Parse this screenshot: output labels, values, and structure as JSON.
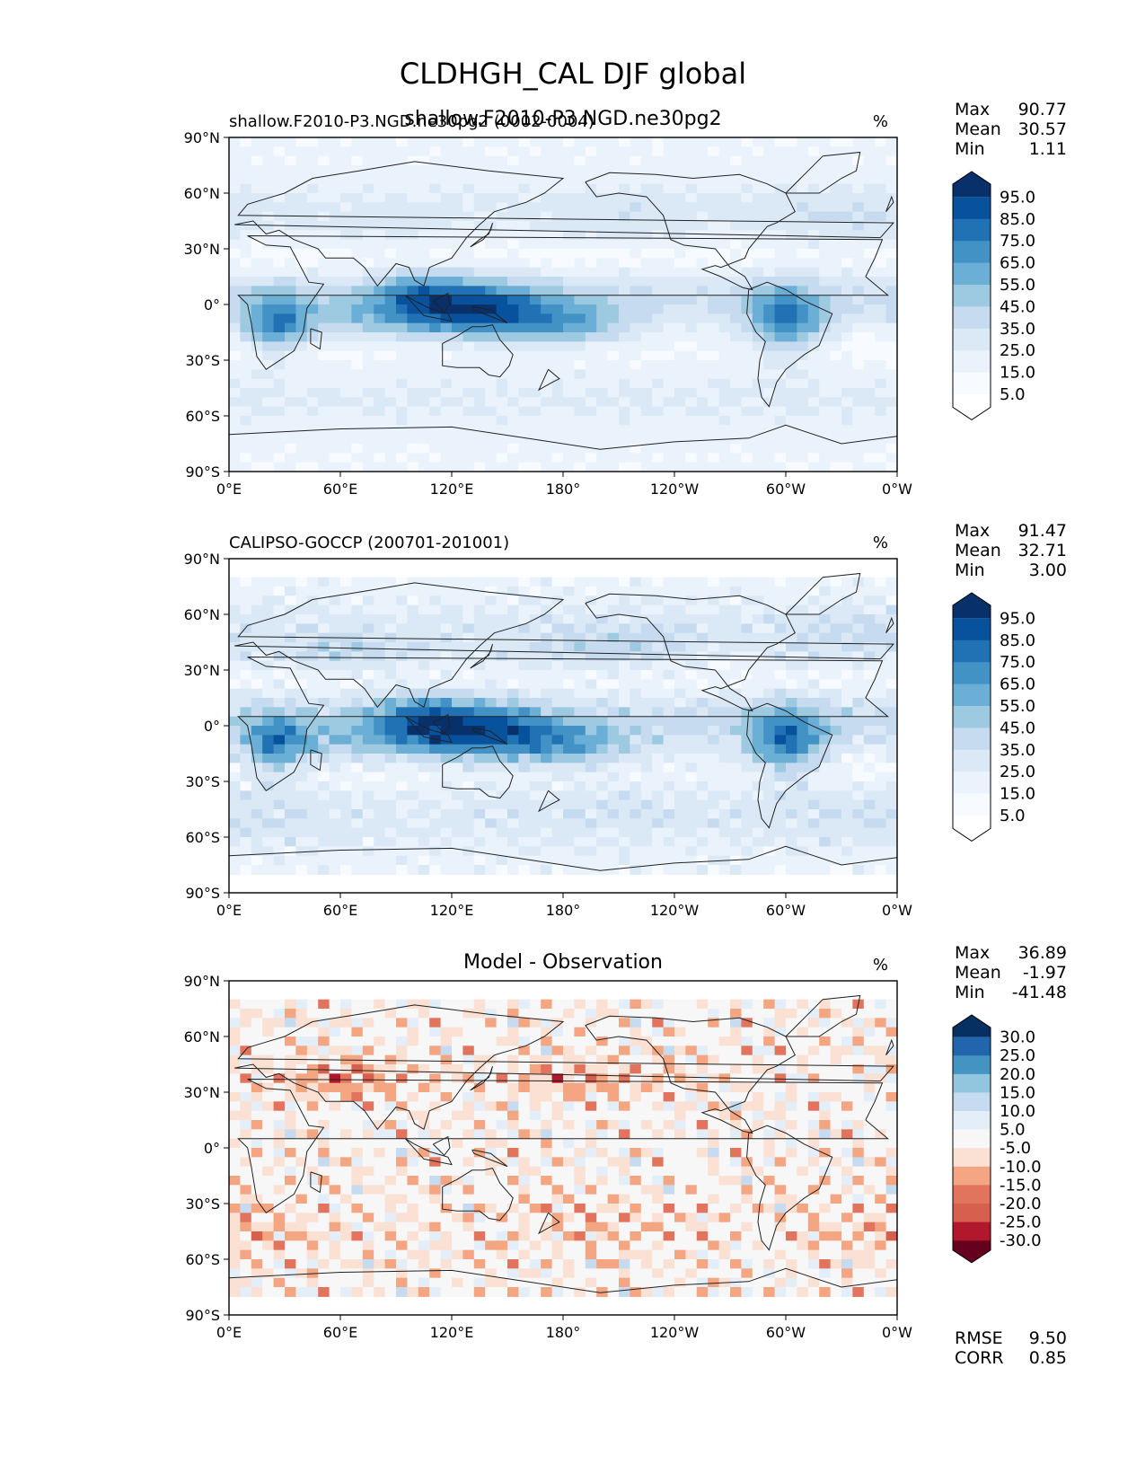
{
  "title": "CLDHGH_CAL DJF global",
  "chart_data": [
    {
      "type": "heatmap",
      "title": "shallow.F2010-P3.NGD.ne30pg2",
      "subtitle_left": "shallow.F2010-P3.NGD.ne30pg2 (0002-0004)",
      "units": "%",
      "stats": [
        {
          "label": "Max",
          "value": "90.77"
        },
        {
          "label": "Mean",
          "value": "30.57"
        },
        {
          "label": "Min",
          "value": "1.11"
        }
      ],
      "xlim": [
        0,
        360
      ],
      "ylim": [
        -90,
        90
      ],
      "xticks": [
        "0°E",
        "60°E",
        "120°E",
        "180°",
        "120°W",
        "60°W",
        "0°W"
      ],
      "yticks": [
        "90°N",
        "60°N",
        "30°N",
        "0°",
        "30°S",
        "60°S",
        "90°S"
      ],
      "colorbar": {
        "scheme": "sequential",
        "labels": [
          "95.0",
          "85.0",
          "75.0",
          "65.0",
          "55.0",
          "45.0",
          "35.0",
          "25.0",
          "15.0",
          "5.0"
        ],
        "colors": [
          "#08306b",
          "#08519c",
          "#2171b5",
          "#4292c6",
          "#6baed6",
          "#9ecae1",
          "#c6dbef",
          "#dbe9f6",
          "#eaf3fb",
          "#f7fbff",
          "#ffffff"
        ]
      }
    },
    {
      "type": "heatmap",
      "title": "",
      "subtitle_left": "CALIPSO-GOCCP (200701-201001)",
      "units": "%",
      "stats": [
        {
          "label": "Max",
          "value": "91.47"
        },
        {
          "label": "Mean",
          "value": "32.71"
        },
        {
          "label": "Min",
          "value": "3.00"
        }
      ],
      "xlim": [
        0,
        360
      ],
      "ylim": [
        -90,
        90
      ],
      "xticks": [
        "0°E",
        "60°E",
        "120°E",
        "180°",
        "120°W",
        "60°W",
        "0°W"
      ],
      "yticks": [
        "90°N",
        "60°N",
        "30°N",
        "0°",
        "30°S",
        "60°S",
        "90°S"
      ],
      "colorbar": {
        "scheme": "sequential",
        "labels": [
          "95.0",
          "85.0",
          "75.0",
          "65.0",
          "55.0",
          "45.0",
          "35.0",
          "25.0",
          "15.0",
          "5.0"
        ],
        "colors": [
          "#08306b",
          "#08519c",
          "#2171b5",
          "#4292c6",
          "#6baed6",
          "#9ecae1",
          "#c6dbef",
          "#dbe9f6",
          "#eaf3fb",
          "#f7fbff",
          "#ffffff"
        ]
      }
    },
    {
      "type": "heatmap",
      "title": "Model - Observation",
      "subtitle_left": "",
      "units": "%",
      "stats": [
        {
          "label": "Max",
          "value": "36.89"
        },
        {
          "label": "Mean",
          "value": "-1.97"
        },
        {
          "label": "Min",
          "value": "-41.48"
        }
      ],
      "xlim": [
        0,
        360
      ],
      "ylim": [
        -90,
        90
      ],
      "xticks": [
        "0°E",
        "60°E",
        "120°E",
        "180°",
        "120°W",
        "60°W",
        "0°W"
      ],
      "yticks": [
        "90°N",
        "60°N",
        "30°N",
        "0°",
        "30°S",
        "60°S",
        "90°S"
      ],
      "colorbar": {
        "scheme": "diverging",
        "labels": [
          "30.0",
          "25.0",
          "20.0",
          "15.0",
          "10.0",
          "5.0",
          "-5.0",
          "-10.0",
          "-15.0",
          "-20.0",
          "-25.0",
          "-30.0"
        ],
        "colors": [
          "#053061",
          "#2166ac",
          "#4393c3",
          "#92c5de",
          "#c6dbef",
          "#e3eef8",
          "#f7f7f7",
          "#fbe0d4",
          "#f4a582",
          "#e2735c",
          "#d6604d",
          "#b2182b",
          "#67001f"
        ]
      },
      "metrics": [
        {
          "label": "RMSE",
          "value": "9.50"
        },
        {
          "label": "CORR",
          "value": "0.85"
        }
      ]
    }
  ]
}
